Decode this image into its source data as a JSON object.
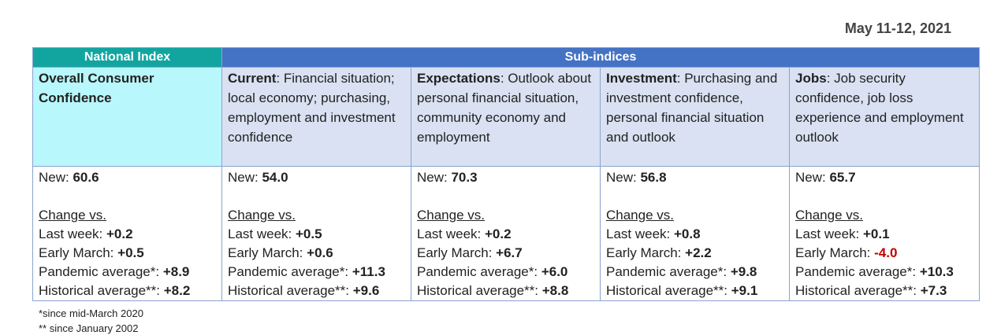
{
  "date": "May 11-12, 2021",
  "headers": {
    "national": "National Index",
    "sub": "Sub-indices"
  },
  "columns": [
    {
      "title": "Overall Consumer Confidence",
      "desc": "",
      "new_label": "New: ",
      "new_value": "60.6",
      "change_label": "Change vs.",
      "last_week_label": "Last week: ",
      "last_week": "+0.2",
      "early_march_label": "Early March: ",
      "early_march": "+0.5",
      "pandemic_label": "Pandemic average*: ",
      "pandemic": "+8.9",
      "historical_label": "Historical average**: ",
      "historical": "+8.2"
    },
    {
      "title": "Current",
      "desc": ":  Financial situation; local economy; purchasing, employment and investment confidence",
      "new_label": "New: ",
      "new_value": "54.0",
      "change_label": "Change vs.",
      "last_week_label": "Last week: ",
      "last_week": "+0.5",
      "early_march_label": "Early March: ",
      "early_march": "+0.6",
      "pandemic_label": "Pandemic average*:  ",
      "pandemic": "+11.3",
      "historical_label": "Historical average**: ",
      "historical": "+9.6"
    },
    {
      "title": "Expectations",
      "desc": ":  Outlook about personal financial situation, community economy and employment",
      "new_label": "New: ",
      "new_value": "70.3",
      "change_label": "Change vs.",
      "last_week_label": "Last week: ",
      "last_week": "+0.2",
      "early_march_label": "Early March: ",
      "early_march": "+6.7",
      "pandemic_label": "Pandemic average*: ",
      "pandemic": "+6.0",
      "historical_label": "Historical average**: ",
      "historical": "+8.8"
    },
    {
      "title": "Investment",
      "desc": ": Purchasing and investment confidence, personal financial situation and outlook",
      "new_label": "New: ",
      "new_value": "56.8",
      "change_label": "Change vs.",
      "last_week_label": "Last week: ",
      "last_week": "+0.8",
      "early_march_label": "Early March: ",
      "early_march": "+2.2",
      "pandemic_label": "Pandemic average*: ",
      "pandemic": "+9.8",
      "historical_label": "Historical average**: ",
      "historical": "+9.1"
    },
    {
      "title": "Jobs",
      "desc": ": Job security confidence, job loss experience  and employment outlook",
      "new_label": "New: ",
      "new_value": "65.7",
      "change_label": "Change vs.",
      "last_week_label": "Last week: ",
      "last_week": "+0.1",
      "early_march_label": "Early March: ",
      "early_march": "-4.0",
      "pandemic_label": "Pandemic average*: ",
      "pandemic": "+10.3",
      "historical_label": "Historical average**: ",
      "historical": "+7.3"
    }
  ],
  "footnotes": [
    "*since mid-March 2020",
    "** since January 2002"
  ],
  "colors": {
    "national_header": "#12a5a0",
    "sub_header": "#4472c4",
    "national_cell": "#b8f7fb",
    "sub_cell": "#d9e1f2",
    "negative": "#c00000"
  }
}
